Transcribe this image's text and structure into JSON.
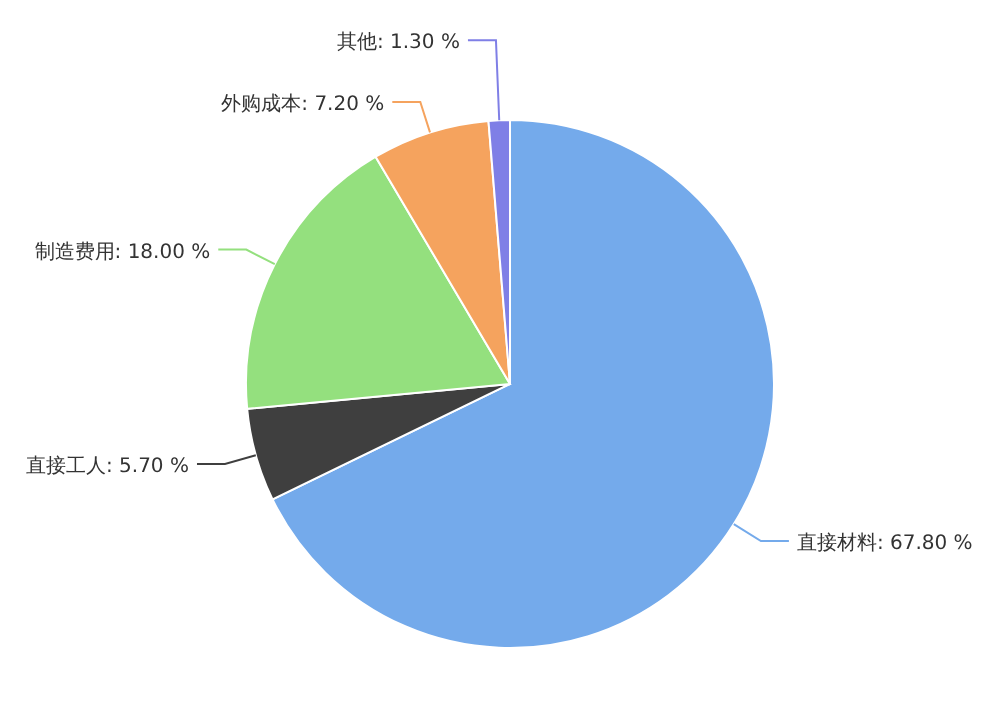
{
  "chart_data": {
    "type": "pie",
    "categories": [
      "直接材料",
      "直接工人",
      "制造费用",
      "外购成本",
      "其他"
    ],
    "values": [
      67.8,
      5.7,
      18.0,
      7.2,
      1.3
    ],
    "value_labels": [
      "67.80 %",
      "5.70 %",
      "18.00 %",
      "7.20 %",
      "1.30 %"
    ],
    "colors": [
      "#74aaeb",
      "#3f3f3f",
      "#94e07e",
      "#f5a35e",
      "#7f7fe6"
    ]
  }
}
